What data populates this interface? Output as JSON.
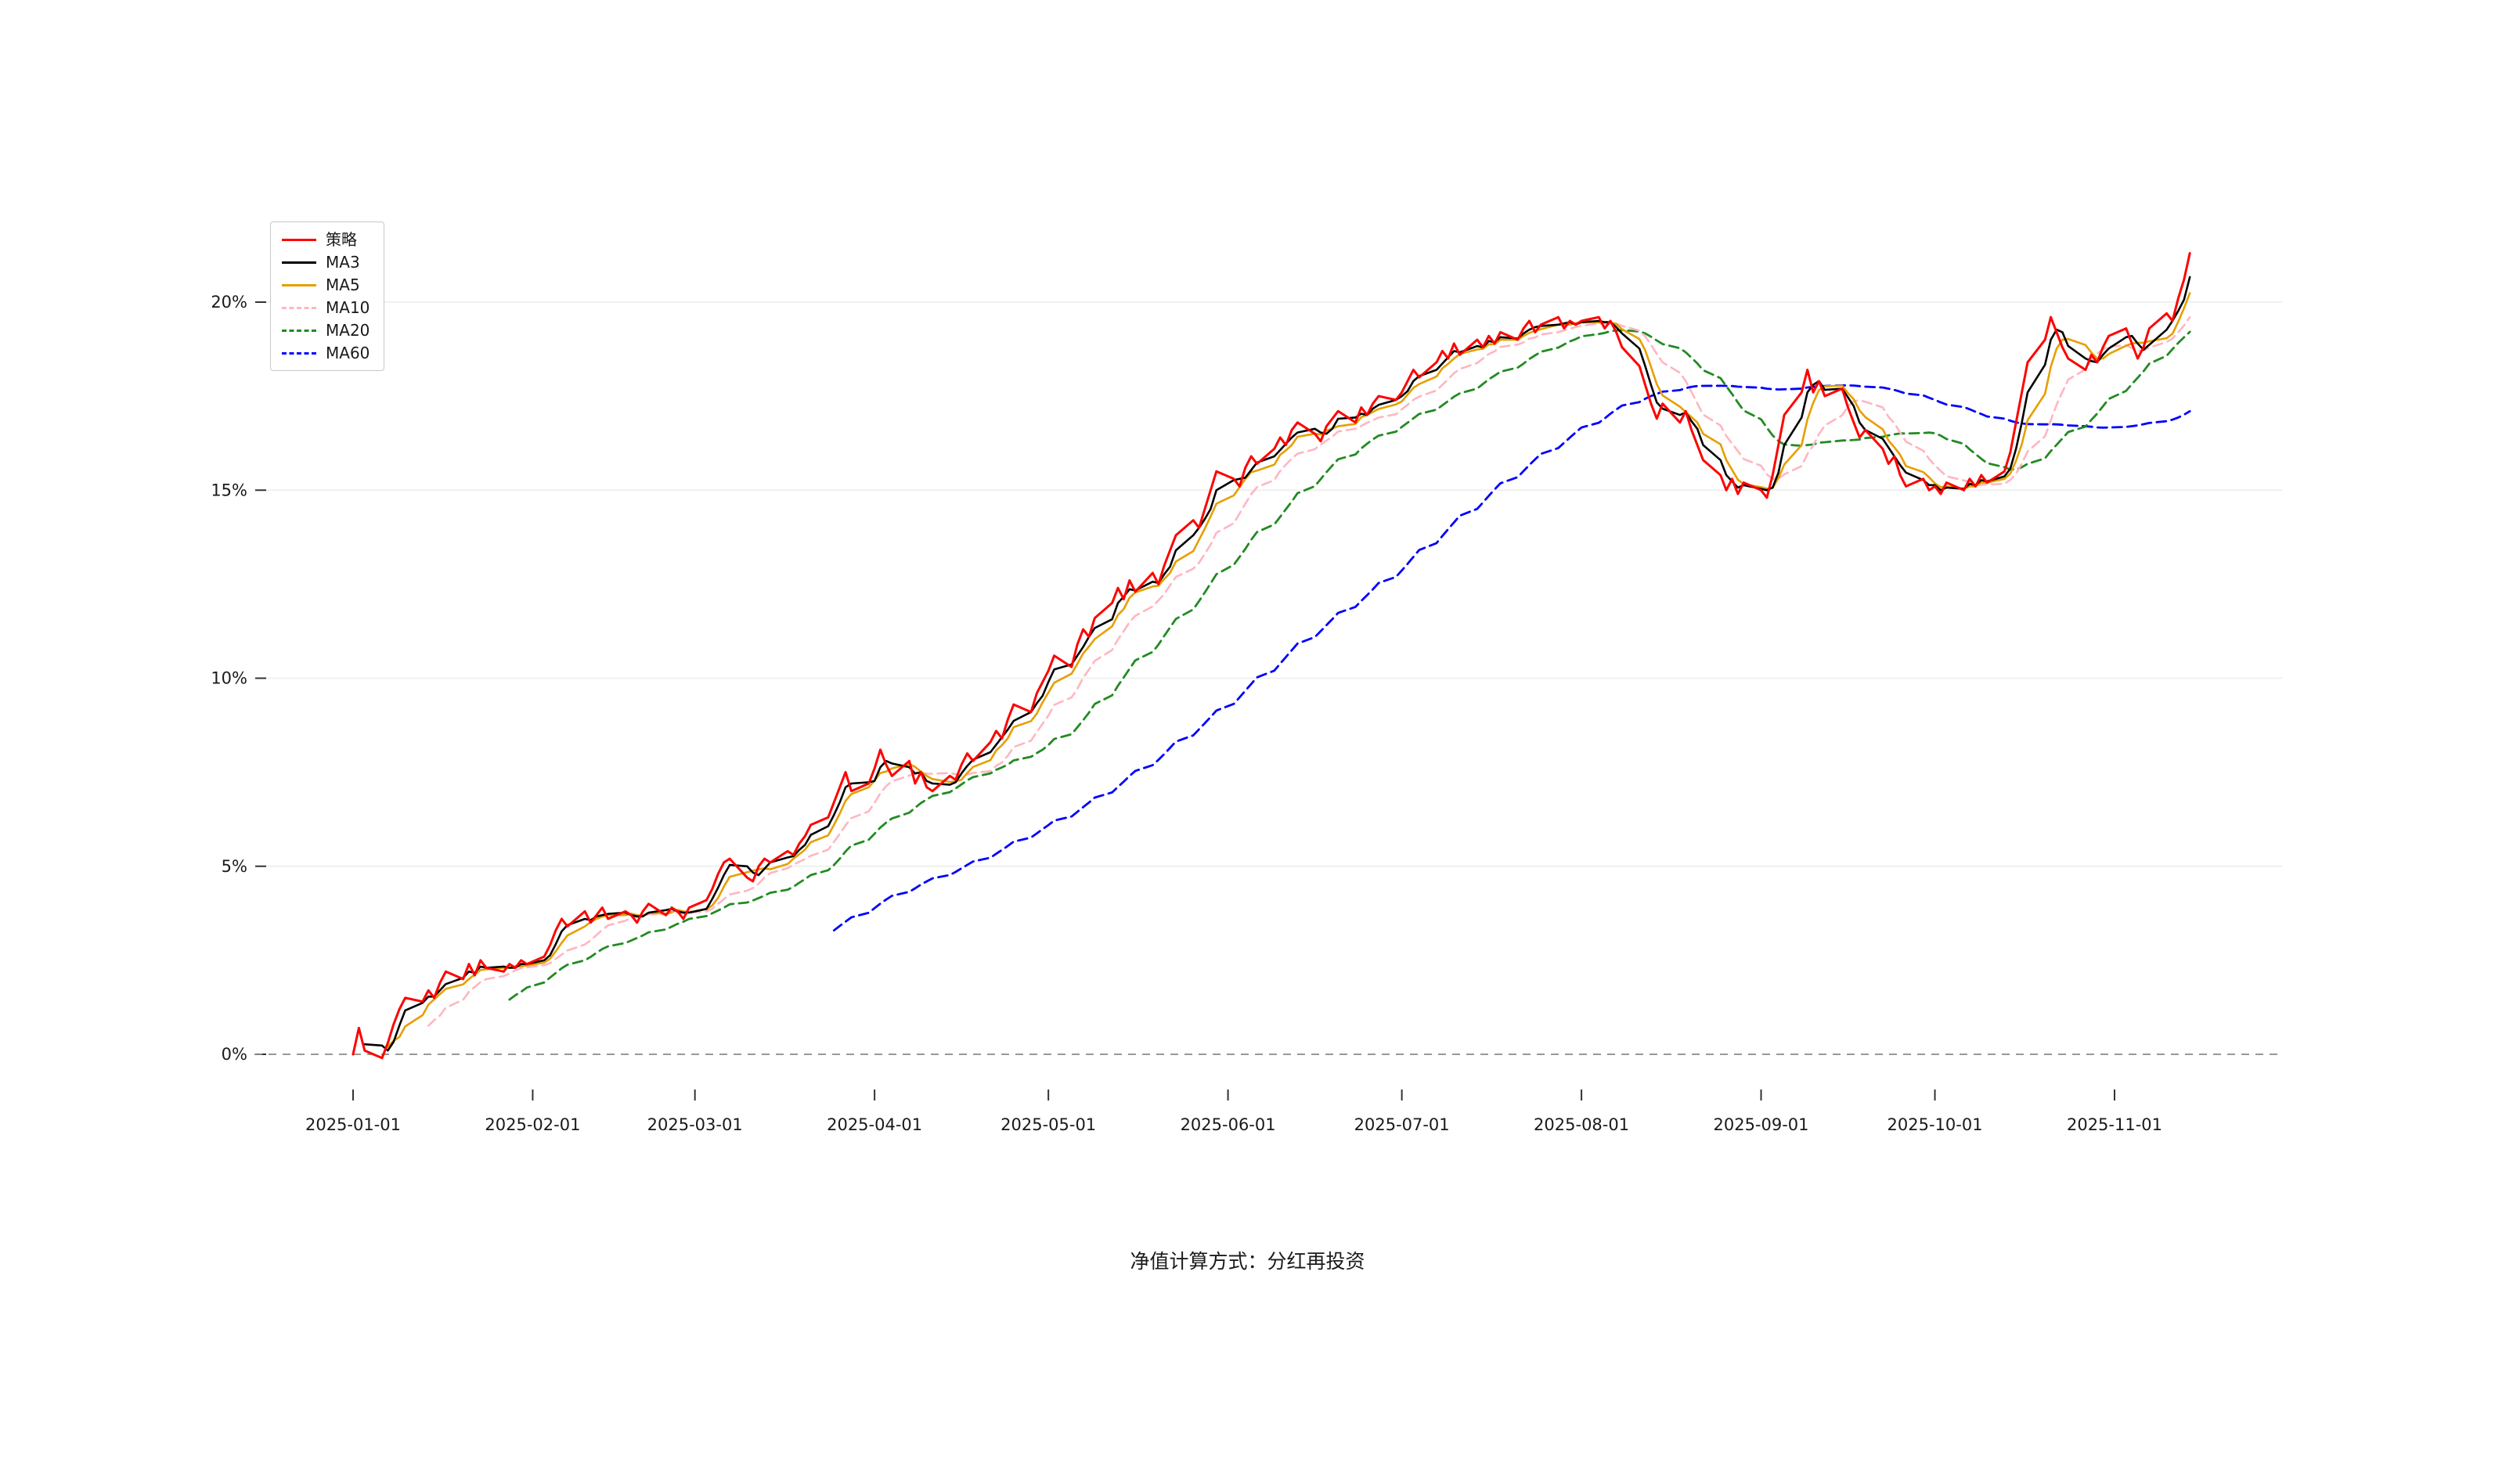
{
  "figure": {
    "caption": "净值计算方式：分红再投资"
  },
  "chart_data": {
    "type": "line",
    "title": "",
    "xlabel": "",
    "ylabel": "",
    "x_start_date": "2025-01-01",
    "x_end_date": "2025-11-14",
    "frequency": "weekdays",
    "ylim": [
      -1.2,
      21.9
    ],
    "yticks": [
      0,
      5,
      10,
      15,
      20
    ],
    "ytick_labels": [
      "0%",
      "5%",
      "10%",
      "15%",
      "20%"
    ],
    "xtick_labels": [
      "2025-01-01",
      "2025-02-01",
      "2025-03-01",
      "2025-04-01",
      "2025-05-01",
      "2025-06-01",
      "2025-07-01",
      "2025-08-01",
      "2025-09-01",
      "2025-10-01",
      "2025-11-01"
    ],
    "grid": "horizontal-faint",
    "zero_line": {
      "style": "dashed",
      "color": "#8a8a8a"
    },
    "legend_position": "upper-left",
    "series": [
      {
        "name": "策略",
        "color": "#ff0000",
        "style": "solid",
        "source": "strategy",
        "width": 3.0
      },
      {
        "name": "MA3",
        "color": "#000000",
        "style": "solid",
        "window": 3,
        "width": 2.6
      },
      {
        "name": "MA5",
        "color": "#e69f00",
        "style": "solid",
        "window": 5,
        "width": 2.6
      },
      {
        "name": "MA10",
        "color": "#ffb6c1",
        "style": "dashed",
        "window": 10,
        "width": 2.6
      },
      {
        "name": "MA20",
        "color": "#228b22",
        "style": "dashed",
        "window": 20,
        "width": 2.8
      },
      {
        "name": "MA60",
        "color": "#0000ff",
        "style": "dashed",
        "window": 60,
        "width": 2.8
      }
    ],
    "strategy_values": [
      0.0,
      0.7,
      0.1,
      -0.1,
      0.3,
      0.8,
      1.2,
      1.5,
      1.4,
      1.7,
      1.5,
      1.9,
      2.2,
      2.0,
      2.4,
      2.1,
      2.5,
      2.3,
      2.2,
      2.4,
      2.3,
      2.5,
      2.4,
      2.6,
      2.9,
      3.3,
      3.6,
      3.4,
      3.8,
      3.5,
      3.7,
      3.9,
      3.6,
      3.8,
      3.7,
      3.5,
      3.8,
      4.0,
      3.7,
      3.9,
      3.8,
      3.6,
      3.9,
      4.1,
      4.4,
      4.8,
      5.1,
      5.2,
      4.7,
      4.6,
      5.0,
      5.2,
      5.1,
      5.4,
      5.3,
      5.6,
      5.8,
      6.1,
      6.3,
      6.7,
      7.1,
      7.5,
      7.0,
      7.2,
      7.6,
      8.1,
      7.7,
      7.4,
      7.8,
      7.2,
      7.5,
      7.1,
      7.0,
      7.4,
      7.3,
      7.7,
      8.0,
      7.8,
      8.3,
      8.6,
      8.4,
      8.9,
      9.3,
      9.1,
      9.6,
      9.9,
      10.2,
      10.6,
      10.3,
      10.9,
      11.3,
      11.1,
      11.6,
      12.0,
      12.4,
      12.1,
      12.6,
      12.3,
      12.8,
      12.5,
      13.0,
      13.4,
      13.8,
      14.2,
      14.0,
      14.5,
      15.0,
      15.5,
      15.3,
      15.1,
      15.6,
      15.9,
      15.7,
      16.1,
      16.4,
      16.2,
      16.6,
      16.8,
      16.5,
      16.3,
      16.7,
      16.9,
      17.1,
      16.8,
      17.2,
      17.0,
      17.3,
      17.5,
      17.4,
      17.6,
      17.9,
      18.2,
      18.0,
      18.4,
      18.7,
      18.5,
      18.9,
      18.6,
      19.0,
      18.8,
      19.1,
      18.9,
      19.2,
      19.0,
      19.3,
      19.5,
      19.2,
      19.4,
      19.6,
      19.3,
      19.5,
      19.4,
      19.5,
      19.6,
      19.3,
      19.5,
      19.2,
      18.8,
      18.3,
      17.8,
      17.3,
      16.9,
      17.3,
      16.8,
      17.1,
      16.6,
      16.2,
      15.8,
      15.4,
      15.0,
      15.3,
      14.9,
      15.2,
      15.0,
      14.8,
      15.4,
      16.2,
      17.0,
      17.6,
      18.2,
      17.6,
      17.9,
      17.5,
      17.7,
      17.2,
      16.8,
      16.4,
      16.6,
      16.1,
      15.7,
      15.9,
      15.4,
      15.1,
      15.3,
      15.0,
      15.1,
      14.9,
      15.2,
      15.0,
      15.3,
      15.1,
      15.4,
      15.2,
      15.5,
      16.0,
      16.8,
      17.6,
      18.4,
      19.0,
      19.6,
      19.2,
      18.8,
      18.5,
      18.2,
      18.6,
      18.4,
      18.8,
      19.1,
      19.3,
      18.9,
      18.5,
      18.8,
      19.3,
      19.7,
      19.5,
      20.1,
      20.6,
      21.3
    ]
  }
}
